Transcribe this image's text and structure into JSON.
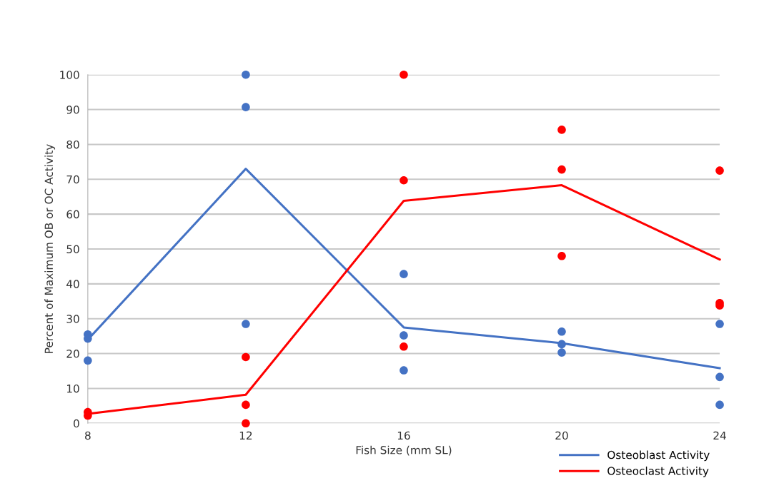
{
  "chart_data": {
    "type": "line",
    "xlabel": "Fish Size (mm SL)",
    "ylabel": "Percent of Maximum OB or OC Activity",
    "xlim": [
      8,
      24
    ],
    "xticks": [
      8,
      12,
      16,
      20,
      24
    ],
    "ylim": [
      0,
      100
    ],
    "yticks": [
      0,
      10,
      20,
      30,
      40,
      50,
      60,
      70,
      80,
      90,
      100
    ],
    "grid": "y",
    "legend": "bottom right",
    "series": [
      {
        "name": "Osteoblast Activity",
        "color": "#4472c4",
        "marker": "none",
        "x": [
          8,
          12,
          16,
          20,
          24
        ],
        "values": [
          24,
          73,
          27.5,
          23,
          15.8
        ]
      },
      {
        "name": "Osteoclast Activity",
        "color": "#ff0000",
        "marker": "none",
        "x": [
          8,
          12,
          16,
          20,
          24
        ],
        "values": [
          2.7,
          8.2,
          63.8,
          68.3,
          47
        ]
      },
      {
        "color": "#4472c4",
        "type": "scatter",
        "marker": "circle",
        "x": [
          8,
          8,
          8,
          12,
          12,
          12,
          16,
          16,
          16,
          20,
          20,
          20,
          24,
          24,
          24
        ],
        "values": [
          25.5,
          24.3,
          18,
          100,
          90.7,
          28.5,
          42.8,
          25.2,
          15.2,
          26.3,
          22.7,
          20.3,
          28.5,
          13.3,
          5.3
        ]
      },
      {
        "color": "#ff0000",
        "type": "scatter",
        "marker": "circle",
        "x": [
          8,
          8,
          12,
          12,
          12,
          16,
          16,
          16,
          20,
          20,
          20,
          24,
          24,
          24
        ],
        "values": [
          3.2,
          2.2,
          19,
          5.3,
          0,
          100,
          69.7,
          22,
          84.2,
          72.8,
          48,
          72.5,
          34.5,
          33.8
        ]
      }
    ]
  }
}
